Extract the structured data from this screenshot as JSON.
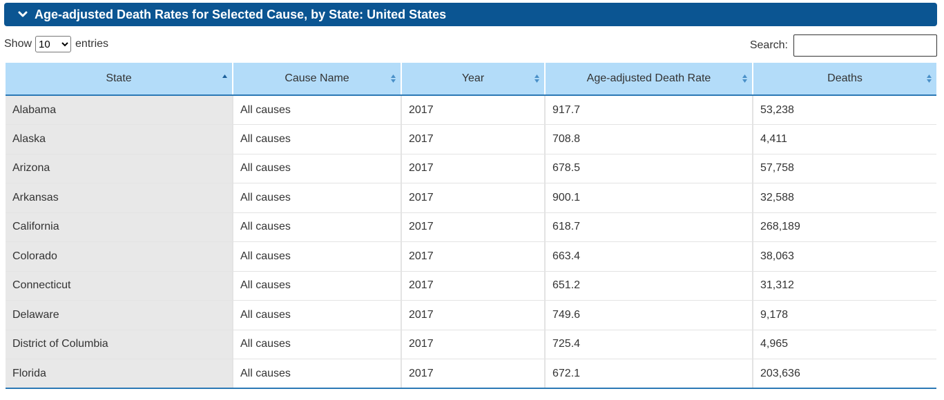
{
  "header": {
    "title": "Age-adjusted Death Rates for Selected Cause, by State: United States",
    "chevron_icon": "chevron-down-icon"
  },
  "controls": {
    "show_label": "Show",
    "entries_value": "10",
    "entries_label": "entries",
    "search_label": "Search:",
    "search_value": ""
  },
  "table": {
    "columns": [
      {
        "label": "State",
        "sort": "ascending"
      },
      {
        "label": "Cause Name",
        "sort": "both"
      },
      {
        "label": "Year",
        "sort": "both"
      },
      {
        "label": "Age-adjusted Death Rate",
        "sort": "both"
      },
      {
        "label": "Deaths",
        "sort": "both"
      }
    ],
    "rows": [
      [
        "Alabama",
        "All causes",
        "2017",
        "917.7",
        "53,238"
      ],
      [
        "Alaska",
        "All causes",
        "2017",
        "708.8",
        "4,411"
      ],
      [
        "Arizona",
        "All causes",
        "2017",
        "678.5",
        "57,758"
      ],
      [
        "Arkansas",
        "All causes",
        "2017",
        "900.1",
        "32,588"
      ],
      [
        "California",
        "All causes",
        "2017",
        "618.7",
        "268,189"
      ],
      [
        "Colorado",
        "All causes",
        "2017",
        "663.4",
        "38,063"
      ],
      [
        "Connecticut",
        "All causes",
        "2017",
        "651.2",
        "31,312"
      ],
      [
        "Delaware",
        "All causes",
        "2017",
        "749.6",
        "9,178"
      ],
      [
        "District of Columbia",
        "All causes",
        "2017",
        "725.4",
        "4,965"
      ],
      [
        "Florida",
        "All causes",
        "2017",
        "672.1",
        "203,636"
      ]
    ]
  },
  "colors": {
    "header_bg": "#0b5592",
    "table_header_bg": "#b3dcf9",
    "accent_border": "#2a78b5",
    "sorted_column_bg": "#e8e8e8"
  }
}
